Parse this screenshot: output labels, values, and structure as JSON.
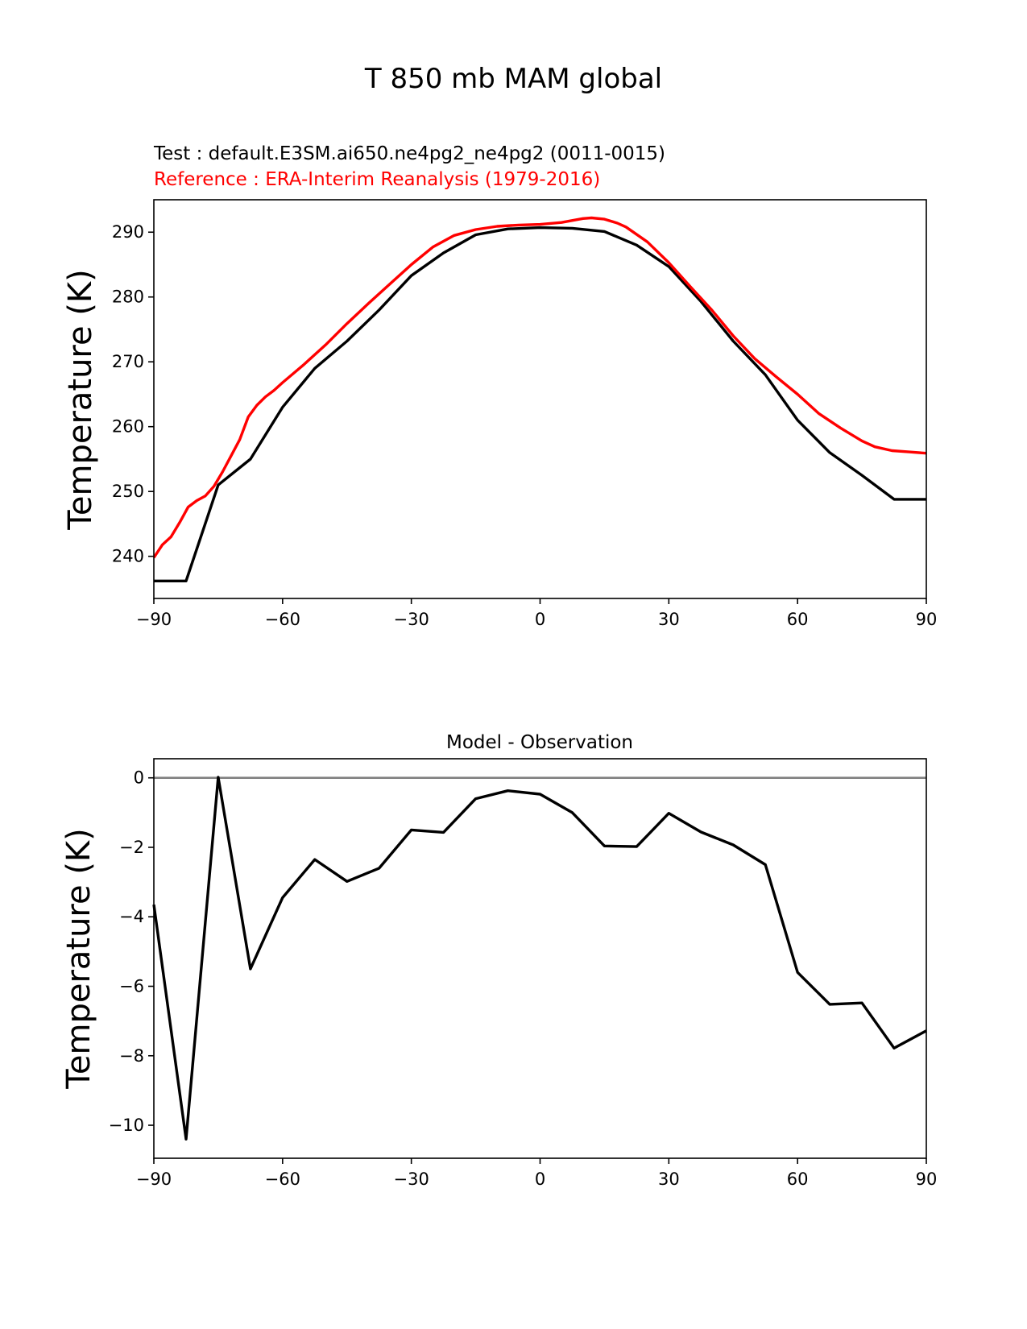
{
  "figure_title": "T 850 mb MAM global",
  "colors": {
    "test": "#000000",
    "reference": "#ff0000",
    "zero_line": "#808080"
  },
  "chart_data": [
    {
      "type": "line",
      "test_label": "Test : default.E3SM.ai650.ne4pg2_ne4pg2 (0011-0015)",
      "reference_label": "Reference : ERA-Interim Reanalysis (1979-2016)",
      "xlabel": "",
      "ylabel": "Temperature (K)",
      "xlim": [
        -90,
        90
      ],
      "ylim": [
        233.5,
        295
      ],
      "xticks": [
        -90,
        -60,
        -30,
        0,
        30,
        60,
        90
      ],
      "xtick_labels": [
        "−90",
        "−60",
        "−30",
        "0",
        "30",
        "60",
        "90"
      ],
      "yticks": [
        240,
        250,
        260,
        270,
        280,
        290
      ],
      "ytick_labels": [
        "240",
        "250",
        "260",
        "270",
        "280",
        "290"
      ],
      "series": [
        {
          "name": "Test",
          "color": "#000000",
          "x": [
            -90,
            -82.5,
            -75,
            -67.5,
            -60,
            -52.5,
            -45,
            -37.5,
            -30,
            -22.5,
            -15,
            -7.5,
            0,
            7.5,
            15,
            22.5,
            30,
            37.5,
            45,
            52.5,
            60,
            67.5,
            75,
            82.5,
            90
          ],
          "y": [
            236.2,
            236.2,
            251,
            255,
            263,
            269,
            273.2,
            278,
            283.3,
            286.8,
            289.6,
            290.5,
            290.7,
            290.6,
            290.1,
            288,
            284.7,
            279.3,
            273.2,
            268,
            261,
            256,
            252.5,
            248.8,
            248.8
          ]
        },
        {
          "name": "Reference",
          "color": "#ff0000",
          "x": [
            -90,
            -88,
            -86,
            -84,
            -82,
            -80,
            -78,
            -76,
            -74,
            -72,
            -70,
            -68,
            -66,
            -64,
            -62,
            -60,
            -55,
            -50,
            -45,
            -40,
            -35,
            -30,
            -25,
            -20,
            -15,
            -10,
            -5,
            0,
            5,
            10,
            12,
            15,
            18,
            20,
            25,
            30,
            35,
            40,
            45,
            50,
            55,
            60,
            65,
            70,
            75,
            78,
            82,
            86,
            90
          ],
          "y": [
            239.8,
            241.8,
            243,
            245.2,
            247.6,
            248.6,
            249.3,
            250.8,
            253,
            255.5,
            258,
            261.5,
            263.3,
            264.6,
            265.6,
            266.8,
            269.6,
            272.6,
            275.9,
            279,
            282,
            285,
            287.7,
            289.5,
            290.4,
            290.9,
            291.1,
            291.2,
            291.5,
            292.1,
            292.2,
            292,
            291.4,
            290.8,
            288.5,
            285.3,
            281.6,
            278,
            274,
            270.5,
            267.7,
            265,
            262,
            259.8,
            257.8,
            256.9,
            256.3,
            256.1,
            255.9
          ]
        }
      ]
    },
    {
      "type": "line",
      "title": "Model - Observation",
      "xlabel": "",
      "ylabel": "Temperature (K)",
      "xlim": [
        -90,
        90
      ],
      "ylim": [
        -10.95,
        0.55
      ],
      "xticks": [
        -90,
        -60,
        -30,
        0,
        30,
        60,
        90
      ],
      "xtick_labels": [
        "−90",
        "−60",
        "−30",
        "0",
        "30",
        "60",
        "90"
      ],
      "yticks": [
        -10,
        -8,
        -6,
        -4,
        -2,
        0
      ],
      "ytick_labels": [
        "−10",
        "−8",
        "−6",
        "−4",
        "−2",
        "0"
      ],
      "zero_line": 0,
      "series": [
        {
          "name": "Model - Observation",
          "color": "#000000",
          "x": [
            -90,
            -82.5,
            -75,
            -67.5,
            -60,
            -52.5,
            -45,
            -37.5,
            -30,
            -22.5,
            -15,
            -7.5,
            0,
            7.5,
            15,
            22.5,
            30,
            37.5,
            45,
            52.5,
            60,
            67.5,
            75,
            82.5,
            90
          ],
          "y": [
            -3.65,
            -10.4,
            0.02,
            -5.5,
            -3.45,
            -2.35,
            -2.98,
            -2.6,
            -1.5,
            -1.57,
            -0.6,
            -0.37,
            -0.47,
            -1,
            -1.96,
            -1.98,
            -1.02,
            -1.56,
            -1.93,
            -2.5,
            -5.6,
            -6.52,
            -6.48,
            -7.78,
            -7.28
          ]
        }
      ]
    }
  ]
}
